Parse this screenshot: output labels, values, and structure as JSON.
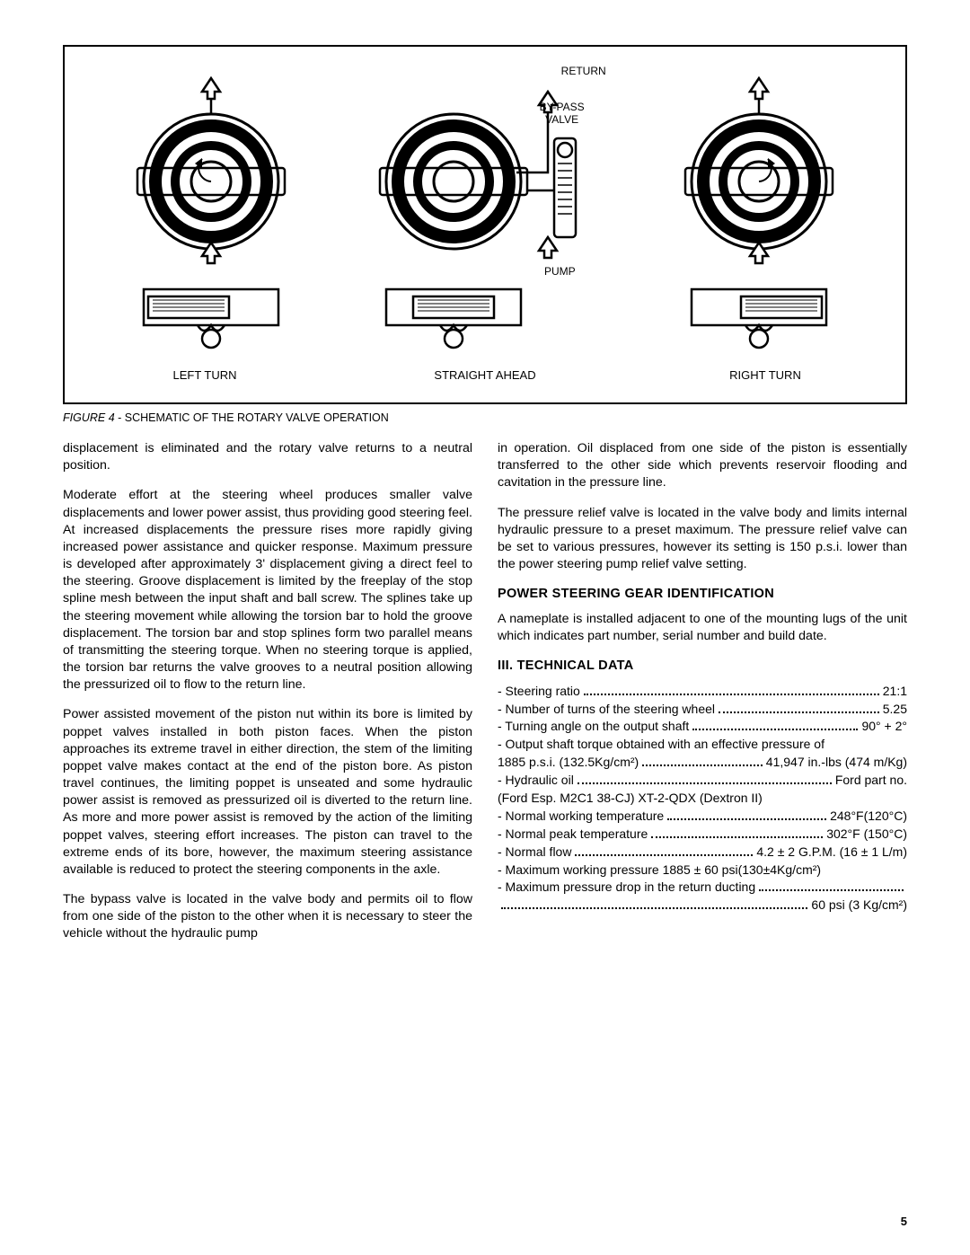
{
  "figure": {
    "labels": {
      "return": "RETURN",
      "bypass": "BY-PASS\nVALVE",
      "pump": "PUMP",
      "left": "LEFT   TURN",
      "straight": "STRAIGHT  AHEAD",
      "right": "RIGHT  TURN"
    },
    "caption_num": "FIGURE 4",
    "caption_text": " - SCHEMATIC OF THE ROTARY VALVE OPERATION"
  },
  "left_column": {
    "p1": "displacement is eliminated and the rotary valve returns to a neutral position.",
    "p2": "Moderate effort at the steering wheel produces smaller valve displacements and lower power assist, thus providing good steering feel. At increased displacements the pressure rises more rapidly giving increased power assistance and quicker response. Maximum pressure is developed after approximately 3' displacement giving a direct feel to the steering. Groove displacement is limited by the freeplay of the stop spline mesh between the input shaft and ball screw. The splines take up the steering movement while allowing the torsion bar to hold the groove displacement. The torsion bar and stop splines form two parallel means of transmitting the steering torque. When no steering torque is applied, the torsion bar returns the valve grooves to a neutral position allowing the pressurized oil to flow to the return line.",
    "p3": "Power assisted movement of the piston nut within its bore is limited by poppet valves installed in both piston faces. When the piston approaches its extreme travel in either direction, the stem of the limiting poppet valve makes contact at the end of the piston bore. As piston travel continues, the limiting poppet is unseated and some hydraulic power assist is removed as pressurized oil is diverted to the return line. As more and more power assist is removed by the action of the limiting poppet valves, steering effort increases. The piston can travel to the extreme ends of its bore, however, the maximum steering assistance available is reduced to protect the steering components in the axle.",
    "p4": "The bypass valve is located in the valve body and permits oil to flow from one side of the piston to the other when it is necessary to steer the vehicle without the hydraulic pump"
  },
  "right_column": {
    "p1": "in operation. Oil displaced from one side of the piston is essentially transferred to the other side which prevents reservoir flooding and cavitation in the pressure line.",
    "p2": "The pressure relief valve is located in the valve body and limits internal hydraulic pressure to a preset maximum. The pressure relief valve can be set to various pressures, however its setting is 150 p.s.i. lower than the power steering pump relief valve setting.",
    "h1": "POWER STEERING GEAR IDENTIFICATION",
    "p3": "A nameplate is installed adjacent to one of the mounting lugs of the unit which indicates part number, serial number and build date.",
    "h2": "III. TECHNICAL DATA"
  },
  "specs": [
    {
      "label": "- Steering ratio",
      "value": "21:1"
    },
    {
      "label": "- Number of turns of the steering wheel",
      "value": "5.25"
    },
    {
      "label": "- Turning angle on the output shaft",
      "value": "90° + 2°"
    }
  ],
  "specs_wrap1": "- Output shaft torque obtained with an effective pressure of",
  "specs_wrap1b": {
    "label": "1885 p.s.i. (132.5Kg/cm²)",
    "value": "41,947 in.-lbs (474 m/Kg)"
  },
  "specs2": [
    {
      "label": "- Hydraulic oil",
      "value": "Ford part no."
    }
  ],
  "specs_wrap2": "  (Ford Esp. M2C1 38-CJ) XT-2-QDX (Dextron II)",
  "specs3": [
    {
      "label": "- Normal working temperature",
      "value": "248°F(120°C)"
    },
    {
      "label": "- Normal peak temperature",
      "value": "302°F (150°C)"
    },
    {
      "label": "- Normal flow",
      "value": "4.2 ± 2 G.P.M. (16 ± 1 L/m)"
    }
  ],
  "specs_wrap3": "- Maximum working pressure 1885 ± 60 psi(130±4Kg/cm²)",
  "specs4_label": "- Maximum pressure drop in the return ducting",
  "specs4_value": "60 psi (3 Kg/cm²)",
  "page_number": "5",
  "colors": {
    "text": "#000000",
    "bg": "#ffffff",
    "border": "#000000"
  }
}
